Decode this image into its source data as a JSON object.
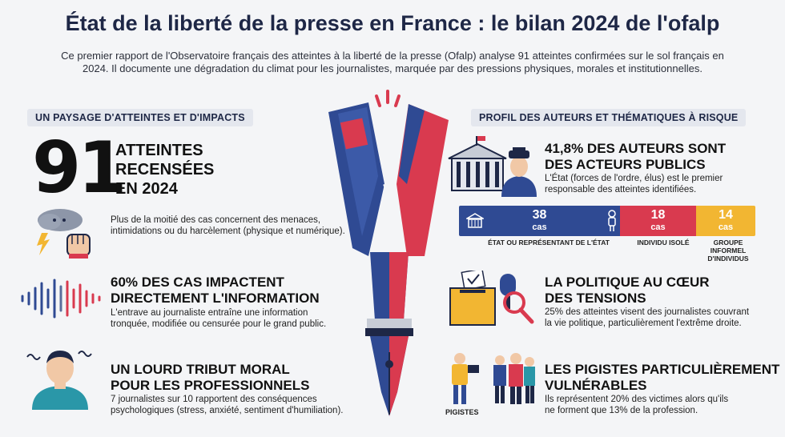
{
  "header": {
    "title": "État de la liberté de la presse en France : le bilan 2024 de l'ofalp",
    "intro_line1": "Ce premier rapport de l'Observatoire français des atteintes à la liberté de la presse (Ofalp) analyse 91 atteintes confirmées sur le sol français en",
    "intro_line2": "2024. Il documente une dégradation du climat pour les journalistes, marquée par des pressions physiques, morales et institutionnelles."
  },
  "left": {
    "section_title": "UN PAYSAGE D'ATTEINTES ET D'IMPACTS",
    "big_number": "91",
    "big_line1": "ATTEINTES",
    "big_line2": "RECENSÉES",
    "big_line3": "EN 2024",
    "threats_text_line1": "Plus de la moitié des cas concernent des menaces,",
    "threats_text_line2": "intimidations ou du harcèlement (physique et numérique).",
    "info_title_line1": "60% DES CAS IMPACTENT",
    "info_title_line2": "DIRECTEMENT L'INFORMATION",
    "info_text_line1": "L'entrave au journaliste entraîne une information",
    "info_text_line2": "tronquée, modifiée ou censurée pour le grand public.",
    "moral_title_line1": "UN LOURD TRIBUT MORAL",
    "moral_title_line2": "POUR LES PROFESSIONNELS",
    "moral_text_line1": "7 journalistes sur 10 rapportent des conséquences",
    "moral_text_line2": "psychologiques (stress, anxiété, sentiment d'humiliation)."
  },
  "right": {
    "section_title": "PROFIL DES AUTEURS ET THÉMATIQUES À RISQUE",
    "authors_title_line1": "41,8% DES AUTEURS SONT",
    "authors_title_line2": "DES ACTEURS PUBLICS",
    "authors_text_line1": "L'État (forces de l'ordre, élus) est le premier",
    "authors_text_line2": "responsable des atteintes identifiées.",
    "bar": [
      {
        "value": "38",
        "unit": "cas",
        "label": "ÉTAT OU REPRÉSENTANT DE L'ÉTAT",
        "color": "#2f4a93",
        "share": 0.543
      },
      {
        "value": "18",
        "unit": "cas",
        "label": "INDIVIDU ISOLÉ",
        "color": "#d93a4f",
        "share": 0.257
      },
      {
        "value": "14",
        "unit": "cas",
        "label_line1": "GROUPE",
        "label_line2": "INFORMEL",
        "label_line3": "D'INDIVIDUS",
        "color": "#f2b632",
        "share": 0.2
      }
    ],
    "politics_title_line1": "LA POLITIQUE AU CŒUR",
    "politics_title_line2": "DES TENSIONS",
    "politics_text_line1": "25% des atteintes visent des journalistes couvrant",
    "politics_text_line2": "la vie politique, particulièrement l'extrême droite.",
    "pigistes_title_line1": "LES PIGISTES PARTICULIÈREMENT",
    "pigistes_title_line2": "VULNÉRABLES",
    "pigistes_text_line1": "Ils représentent 20% des victimes alors qu'ils",
    "pigistes_text_line2": "ne forment que 13% de la profession.",
    "pigistes_label": "PIGISTES"
  },
  "colors": {
    "navy": "#1e2746",
    "blue": "#2f4a93",
    "red": "#d93a4f",
    "yellow": "#f2b632"
  }
}
